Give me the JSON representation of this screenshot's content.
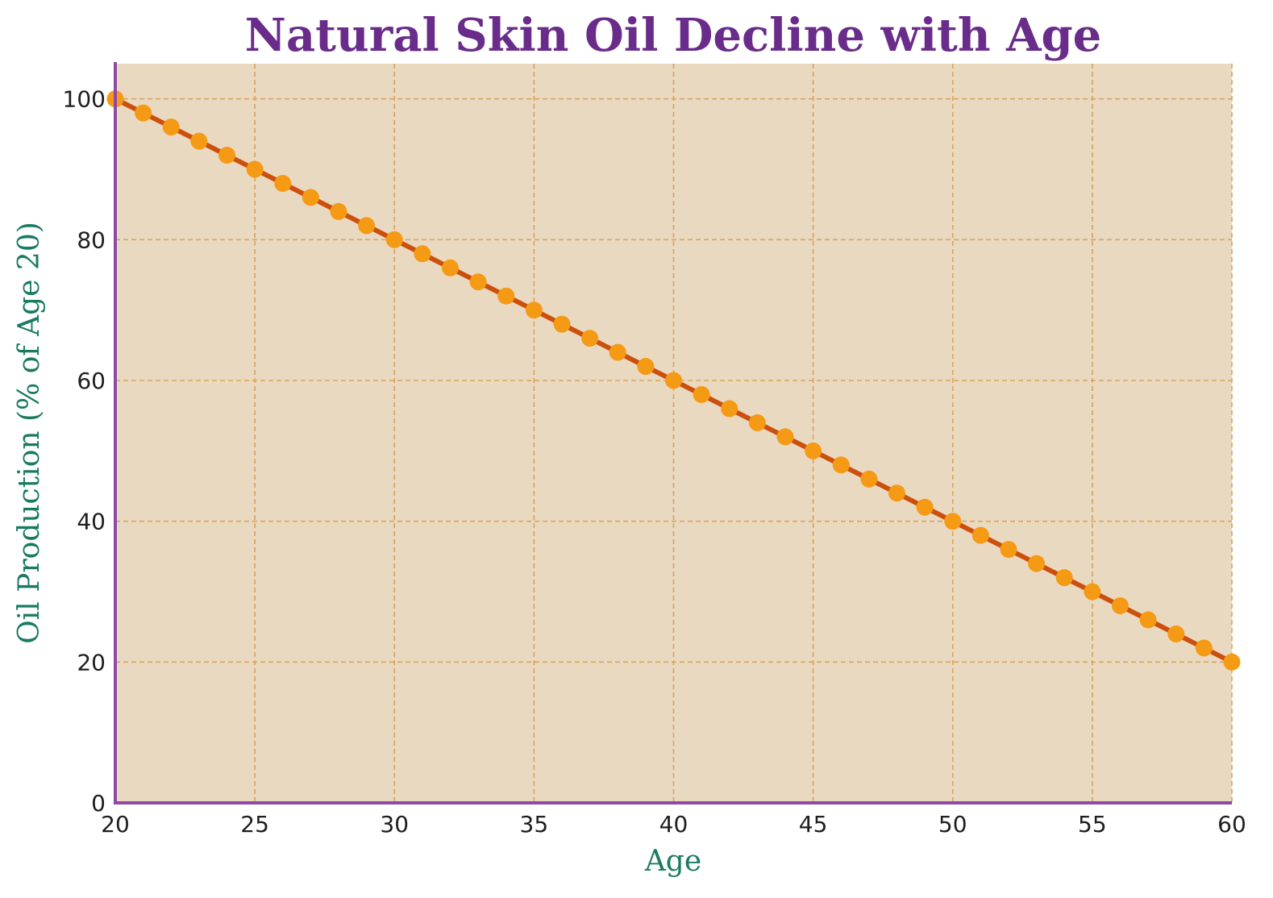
{
  "chart_data": {
    "type": "line",
    "title": "Natural Skin Oil Decline with Age",
    "xlabel": "Age",
    "ylabel": "Oil Production (% of Age 20)",
    "xlim": [
      20,
      60
    ],
    "ylim": [
      0,
      105
    ],
    "xticks": [
      20,
      25,
      30,
      35,
      40,
      45,
      50,
      55,
      60
    ],
    "yticks": [
      0,
      20,
      40,
      60,
      80,
      100
    ],
    "grid": true,
    "x": [
      20,
      21,
      22,
      23,
      24,
      25,
      26,
      27,
      28,
      29,
      30,
      31,
      32,
      33,
      34,
      35,
      36,
      37,
      38,
      39,
      40,
      41,
      42,
      43,
      44,
      45,
      46,
      47,
      48,
      49,
      50,
      51,
      52,
      53,
      54,
      55,
      56,
      57,
      58,
      59,
      60
    ],
    "series": [
      {
        "values": [
          100,
          98,
          96,
          94,
          92,
          90,
          88,
          86,
          84,
          82,
          80,
          78,
          76,
          74,
          72,
          70,
          68,
          66,
          64,
          62,
          60,
          58,
          56,
          54,
          52,
          50,
          48,
          46,
          44,
          42,
          40,
          38,
          36,
          34,
          32,
          30,
          28,
          26,
          24,
          22,
          20
        ]
      }
    ],
    "colors": {
      "background": "#ead9c1",
      "line": "#cc4f0c",
      "marker": "#f59a14",
      "grid": "#d9a35a",
      "spine": "#8e4aa6",
      "title": "#6a2c8a",
      "axis_label": "#1a7a62"
    }
  }
}
